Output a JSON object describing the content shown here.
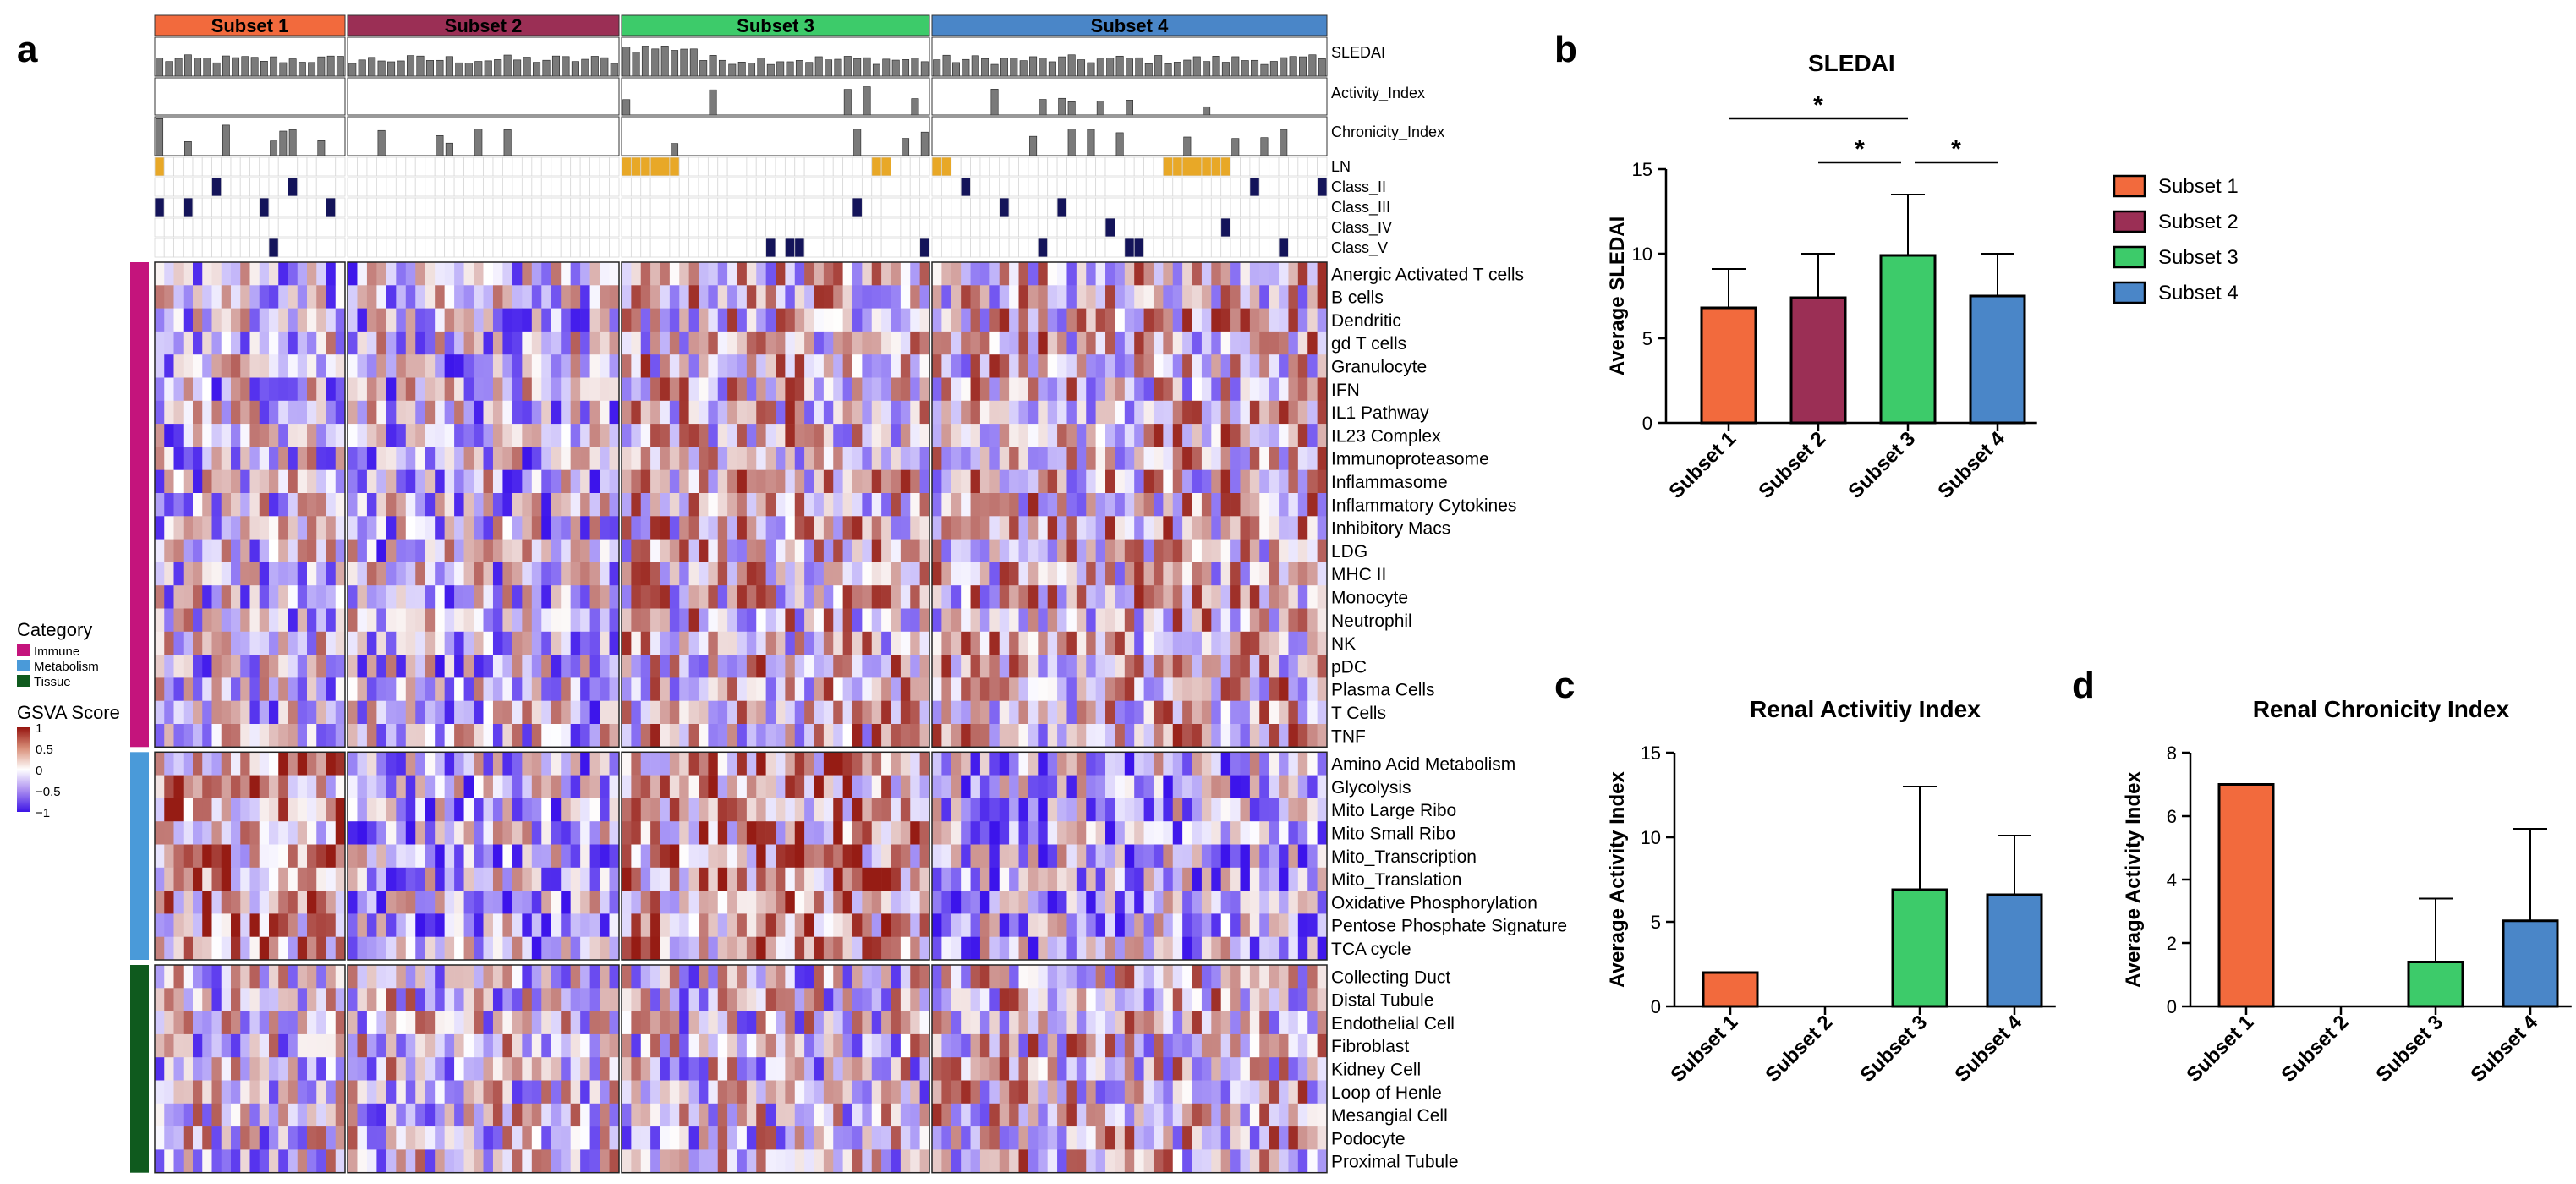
{
  "panel_letters": {
    "a": "a",
    "b": "b",
    "c": "c",
    "d": "d"
  },
  "colors": {
    "subset1": "#F26A3D",
    "subset2": "#9B2F55",
    "subset3": "#3DCB6A",
    "subset4": "#4A86C8",
    "immune": "#C4147C",
    "metabolism": "#4A9AD9",
    "tissue": "#0F5A1E",
    "ln_mark": "#E8A827",
    "class_mark": "#14145A",
    "anno_bar": "#7A7A7A"
  },
  "legend": {
    "category_title": "Category",
    "category_items": [
      "Immune",
      "Metabolism",
      "Tissue"
    ],
    "gsva_title": "GSVA Score",
    "gsva_ticks": [
      "1",
      "0.5",
      "0",
      "−0.5",
      "−1"
    ]
  },
  "chart_data": [
    {
      "id": "heatmap",
      "type": "heatmap",
      "subsets": [
        {
          "name": "Subset 1",
          "n": 20
        },
        {
          "name": "Subset 2",
          "n": 28
        },
        {
          "name": "Subset 3",
          "n": 32
        },
        {
          "name": "Subset 4",
          "n": 41
        }
      ],
      "annotation_tracks": [
        "SLEDAI",
        "Activity_Index",
        "Chronicity_Index",
        "LN",
        "Class_II",
        "Class_III",
        "Class_IV",
        "Class_V"
      ],
      "value_range": [
        -1,
        1
      ],
      "row_groups": [
        {
          "category": "Immune",
          "rows": [
            "Anergic Activated T cells",
            "B cells",
            "Dendritic",
            "gd T cells",
            "Granulocyte",
            "IFN",
            "IL1 Pathway",
            "IL23 Complex",
            "Immunoproteasome",
            "Inflammasome",
            "Inflammatory Cytokines",
            "Inhibitory Macs",
            "LDG",
            "MHC II",
            "Monocyte",
            "Neutrophil",
            "NK",
            "pDC",
            "Plasma Cells",
            "T Cells",
            "TNF"
          ]
        },
        {
          "category": "Metabolism",
          "rows": [
            "Amino Acid Metabolism",
            "Glycolysis",
            "Mito Large Ribo",
            "Mito Small Ribo",
            "Mito_Transcription",
            "Mito_Translation",
            "Oxidative Phosphorylation",
            "Pentose Phosphate Signature",
            "TCA cycle"
          ]
        },
        {
          "category": "Tissue",
          "rows": [
            "Collecting Duct",
            "Distal Tubule",
            "Endothelial Cell",
            "Fibroblast",
            "Kidney Cell",
            "Loop of Henle",
            "Mesangial Cell",
            "Podocyte",
            "Proximal Tubule"
          ]
        }
      ]
    },
    {
      "id": "b",
      "type": "bar",
      "title": "SLEDAI",
      "ylabel": "Average SLEDAI",
      "xlabel": "",
      "categories": [
        "Subset 1",
        "Subset 2",
        "Subset 3",
        "Subset 4"
      ],
      "values": [
        6.8,
        7.4,
        9.9,
        7.5
      ],
      "errors": [
        2.3,
        2.6,
        3.6,
        2.5
      ],
      "ylim": [
        0,
        15
      ],
      "yticks": [
        0,
        5,
        10,
        15
      ],
      "significance": [
        {
          "from": 0,
          "to": 2,
          "label": "*"
        },
        {
          "from": 1,
          "to": 2,
          "label": "*"
        },
        {
          "from": 2,
          "to": 3,
          "label": "*"
        }
      ],
      "legend": [
        "Subset 1",
        "Subset 2",
        "Subset 3",
        "Subset 4"
      ]
    },
    {
      "id": "c",
      "type": "bar",
      "title": "Renal Activitiy Index",
      "ylabel": "Average Activity Index",
      "xlabel": "",
      "categories": [
        "Subset 1",
        "Subset 2",
        "Subset 3",
        "Subset 4"
      ],
      "values": [
        2,
        0,
        6.9,
        6.6
      ],
      "errors": [
        0,
        0,
        6.1,
        3.5
      ],
      "ylim": [
        0,
        15
      ],
      "yticks": [
        0,
        5,
        10,
        15
      ]
    },
    {
      "id": "d",
      "type": "bar",
      "title": "Renal Chronicity Index",
      "ylabel": "Average Activity Index",
      "xlabel": "",
      "categories": [
        "Subset 1",
        "Subset 2",
        "Subset 3",
        "Subset 4"
      ],
      "values": [
        7,
        0,
        1.4,
        2.7
      ],
      "errors": [
        0,
        0,
        2.0,
        2.9
      ],
      "ylim": [
        0,
        8
      ],
      "yticks": [
        0,
        2,
        4,
        6,
        8
      ]
    }
  ]
}
